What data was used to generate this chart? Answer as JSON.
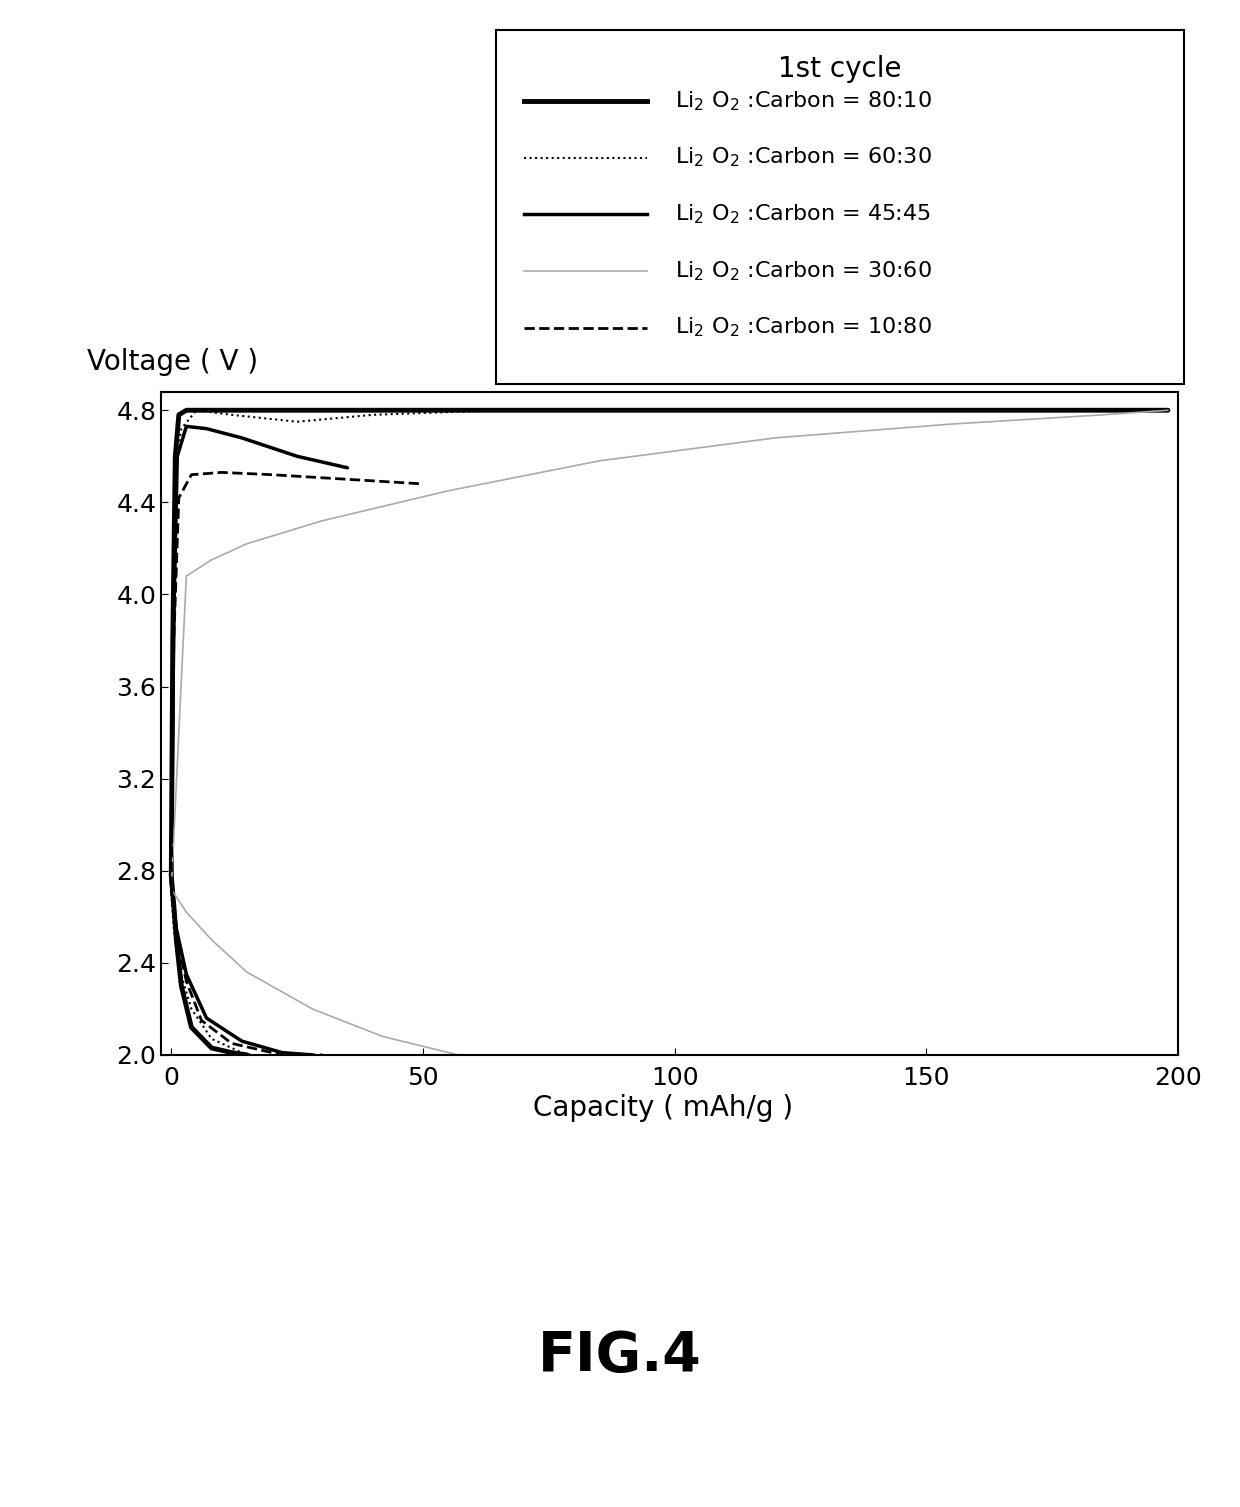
{
  "title": "FIG.4",
  "ylabel": "Voltage ( V )",
  "xlabel": "Capacity ( mAh/g )",
  "legend_title": "1st cycle",
  "xlim": [
    -2,
    200
  ],
  "ylim": [
    2.0,
    4.88
  ],
  "yticks": [
    2.0,
    2.4,
    2.8,
    3.2,
    3.6,
    4.0,
    4.4,
    4.8
  ],
  "xticks": [
    0,
    50,
    100,
    150,
    200
  ],
  "background_color": "#ffffff",
  "legend_entries": [
    {
      "lw": 3.5,
      "ls": "solid",
      "color": "#000000",
      "label": "Li$_2$ O$_2$ :Carbon = 80:10"
    },
    {
      "lw": 1.5,
      "ls": "dotted",
      "color": "#000000",
      "label": "Li$_2$ O$_2$ :Carbon = 60:30"
    },
    {
      "lw": 2.5,
      "ls": "solid",
      "color": "#000000",
      "label": "Li$_2$ O$_2$ :Carbon = 45:45"
    },
    {
      "lw": 1.2,
      "ls": "solid",
      "color": "#aaaaaa",
      "label": "Li$_2$ O$_2$ :Carbon = 30:60"
    },
    {
      "lw": 2.0,
      "ls": "dashed",
      "color": "#000000",
      "label": "Li$_2$ O$_2$ :Carbon = 10:80"
    }
  ]
}
